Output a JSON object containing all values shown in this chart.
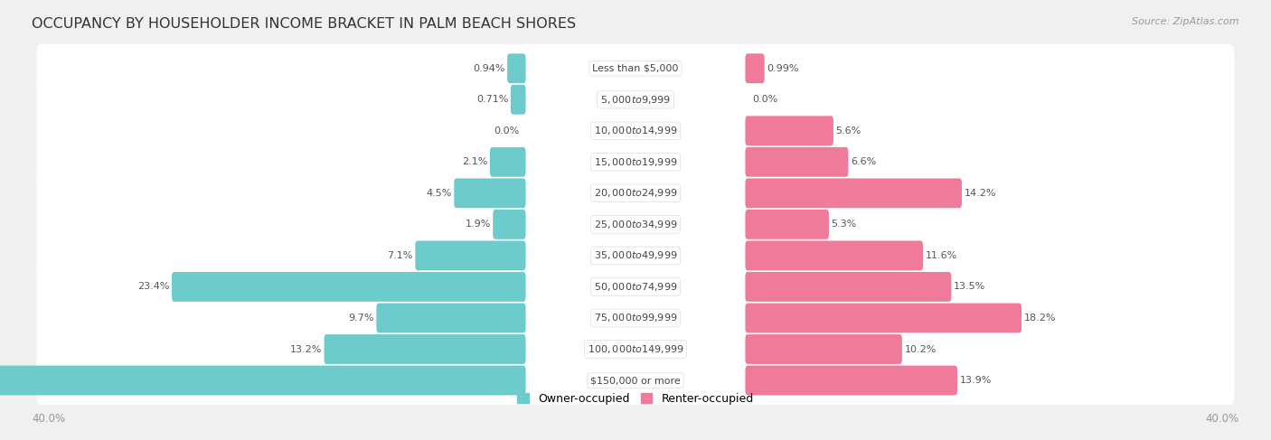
{
  "title": "OCCUPANCY BY HOUSEHOLDER INCOME BRACKET IN PALM BEACH SHORES",
  "source": "Source: ZipAtlas.com",
  "categories": [
    "Less than $5,000",
    "$5,000 to $9,999",
    "$10,000 to $14,999",
    "$15,000 to $19,999",
    "$20,000 to $24,999",
    "$25,000 to $34,999",
    "$35,000 to $49,999",
    "$50,000 to $74,999",
    "$75,000 to $99,999",
    "$100,000 to $149,999",
    "$150,000 or more"
  ],
  "owner_values": [
    0.94,
    0.71,
    0.0,
    2.1,
    4.5,
    1.9,
    7.1,
    23.4,
    9.7,
    13.2,
    36.6
  ],
  "renter_values": [
    0.99,
    0.0,
    5.6,
    6.6,
    14.2,
    5.3,
    11.6,
    13.5,
    18.2,
    10.2,
    13.9
  ],
  "owner_color": "#6DCCCB",
  "renter_color": "#F07A9A",
  "owner_label": "Owner-occupied",
  "renter_label": "Renter-occupied",
  "axis_max": 40.0,
  "bg_color": "#f0f0f0",
  "bar_bg_color": "#ffffff",
  "title_fontsize": 11.5,
  "label_fontsize": 8.0,
  "value_fontsize": 8.0,
  "bar_height": 0.65,
  "x_axis_label_left": "40.0%",
  "x_axis_label_right": "40.0%"
}
